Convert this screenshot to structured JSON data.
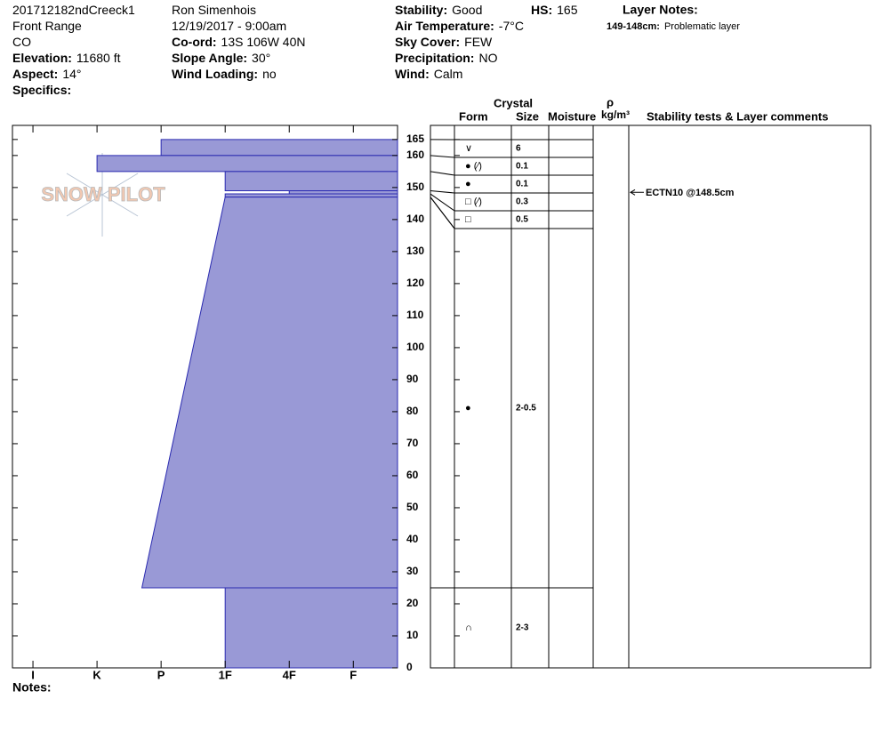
{
  "header": {
    "col1": [
      {
        "value": "201712182ndCreeck1"
      },
      {
        "value": "Front Range"
      },
      {
        "value": "CO"
      },
      {
        "label": "Elevation:",
        "value": "11680 ft"
      },
      {
        "label": "Aspect:",
        "value": "14°"
      },
      {
        "label": "Specifics:"
      }
    ],
    "col2": [
      {
        "value": "Ron Simenhois"
      },
      {
        "value": "12/19/2017 - 9:00am"
      },
      {
        "label": "Co-ord:",
        "value": "13S 106W 40N"
      },
      {
        "label": "Slope Angle:",
        "value": "30°"
      },
      {
        "label": "Wind Loading:",
        "value": "no"
      }
    ],
    "col3": [
      {
        "label": "Stability:",
        "value": "Good"
      },
      {
        "label": "Air Temperature:",
        "value": "-7°C"
      },
      {
        "label": "Sky Cover:",
        "value": "FEW"
      },
      {
        "label": "Precipitation:",
        "value": "NO"
      },
      {
        "label": "Wind:",
        "value": "Calm"
      }
    ],
    "hs": {
      "label": "HS:",
      "value": "165"
    },
    "layer_notes": {
      "title": "Layer Notes:",
      "items": [
        {
          "label": "149-148cm:",
          "value": "Problematic layer"
        }
      ]
    }
  },
  "notes_label": "Notes:",
  "chart_data": {
    "type": "snow-profile",
    "watermark": "SNOW PILOT",
    "color": "#9999d6",
    "edge_color": "#2a2ab0",
    "ylim": [
      0,
      169.4
    ],
    "yticks": [
      0,
      10,
      20,
      30,
      40,
      50,
      60,
      70,
      80,
      90,
      100,
      110,
      120,
      130,
      140,
      150,
      160,
      165
    ],
    "xlim": [
      6.32,
      0.31
    ],
    "xticks": [
      {
        "value": 6,
        "label": "I"
      },
      {
        "value": 5,
        "label": "K"
      },
      {
        "value": 4,
        "label": "P"
      },
      {
        "value": 3,
        "label": "1F"
      },
      {
        "value": 2,
        "label": "4F"
      },
      {
        "value": 1,
        "label": "F"
      }
    ],
    "table_headers": {
      "crystal": "Crystal",
      "form": "Form",
      "size": "Size",
      "moisture": "Moisture",
      "rho": "ρ",
      "density_unit": "kg/m³",
      "comments": "Stability tests & Layer comments"
    },
    "layers": [
      {
        "top": 165,
        "bottom": 160,
        "hardness_top": 4,
        "hardness_bottom": 4,
        "form": "∨",
        "size": "6"
      },
      {
        "top": 160,
        "bottom": 155,
        "hardness_top": 5,
        "hardness_bottom": 5,
        "form": "● (⁄)",
        "size": "0.1"
      },
      {
        "top": 155,
        "bottom": 149,
        "hardness_top": 3,
        "hardness_bottom": 3,
        "form": "●",
        "size": "0.1"
      },
      {
        "top": 149,
        "bottom": 148,
        "hardness_top": 2,
        "hardness_bottom": 2,
        "form": "□ (⁄)",
        "size": "0.3"
      },
      {
        "top": 148,
        "bottom": 147,
        "hardness_top": 3,
        "hardness_bottom": 3,
        "form": "□",
        "size": "0.5"
      },
      {
        "top": 147,
        "bottom": 25,
        "hardness_top": 3,
        "hardness_bottom": 4.3,
        "form": "●",
        "size": "2-0.5"
      },
      {
        "top": 25,
        "bottom": 0,
        "hardness_top": 3,
        "hardness_bottom": 3,
        "form": "∩",
        "size": "2-3"
      }
    ],
    "tests": [
      {
        "text": "ECTN10 @148.5cm",
        "depth": 148.5
      }
    ]
  }
}
